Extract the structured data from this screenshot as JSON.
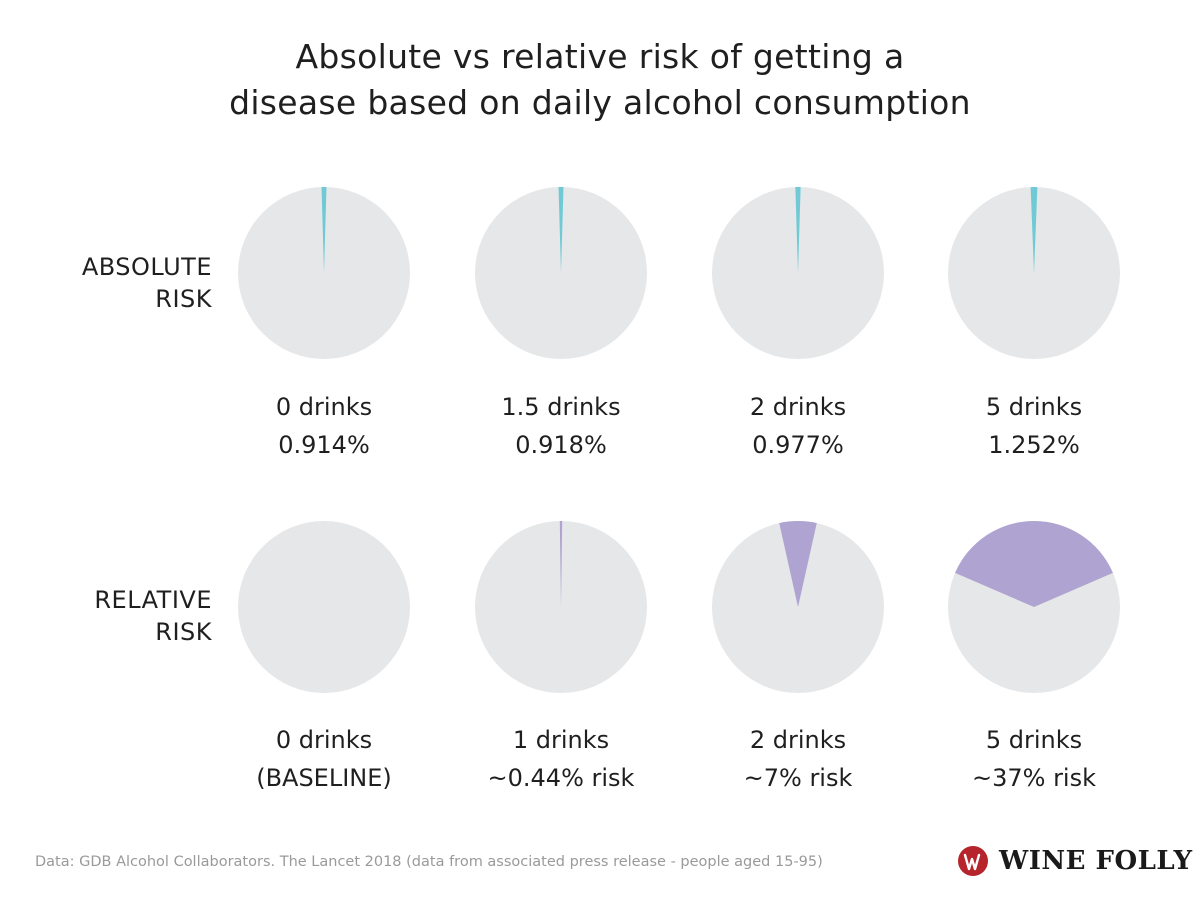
{
  "title": {
    "line1": "Absolute vs relative risk of getting a",
    "line2": "disease based on daily alcohol consumption"
  },
  "row_labels": {
    "absolute": {
      "line1": "ABSOLUTE",
      "line2": "RISK"
    },
    "relative": {
      "line1": "RELATIVE",
      "line2": "RISK"
    }
  },
  "colors": {
    "pie_background": "#e6e7e8",
    "absolute_slice": "#6fcad6",
    "relative_slice": "#afa3d1",
    "logo_red": "#b5252b"
  },
  "chart_data": [
    {
      "type": "pie",
      "name": "ABSOLUTE RISK",
      "categories": [
        "0 drinks",
        "1.5 drinks",
        "2 drinks",
        "5 drinks"
      ],
      "values": [
        0.914,
        0.918,
        0.977,
        1.252
      ],
      "value_labels": [
        "0.914%",
        "0.918%",
        "0.977%",
        "1.252%"
      ],
      "unit": "%"
    },
    {
      "type": "pie",
      "name": "RELATIVE RISK",
      "categories": [
        "0 drinks",
        "1 drinks",
        "2 drinks",
        "5 drinks"
      ],
      "values": [
        0,
        0.44,
        7,
        37
      ],
      "value_labels": [
        "(BASELINE)",
        "~0.44% risk",
        "~7% risk",
        "~37% risk"
      ],
      "unit": "%"
    }
  ],
  "source": "Data: GDB Alcohol Collaborators. The Lancet 2018 (data from associated press release - people aged 15-95)",
  "brand": {
    "name": "WINE FOLLY",
    "logo_icon": "wine-folly-logo-icon"
  }
}
